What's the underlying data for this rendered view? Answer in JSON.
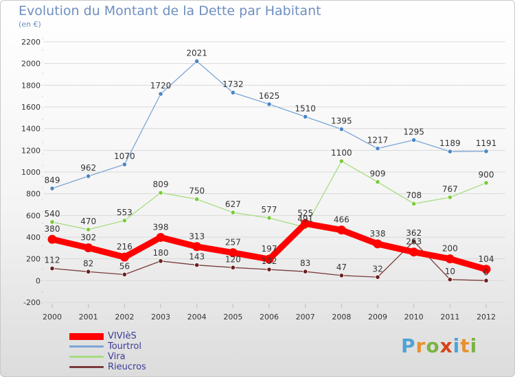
{
  "header": {
    "title": "Evolution du Montant de la Dette par Habitant",
    "subtitle": "(en €)"
  },
  "logo": {
    "text": "Proxiti"
  },
  "colors": {
    "title": "#6e8ec0",
    "grid": "#d9d9d9",
    "axis": "#b0b0b0"
  },
  "chart_data": {
    "type": "line",
    "x": [
      "2000",
      "2001",
      "2002",
      "2003",
      "2004",
      "2005",
      "2006",
      "2007",
      "2008",
      "2009",
      "2010",
      "2011",
      "2012"
    ],
    "ylim": [
      -200,
      2200
    ],
    "yticks": [
      "-200",
      "0",
      "200",
      "400",
      "600",
      "800",
      "1000",
      "1200",
      "1400",
      "1600",
      "1800",
      "2000",
      "2200"
    ],
    "grid": true,
    "legend_position": "bottom-left",
    "series": [
      {
        "name": "Tourtrol",
        "color": "#7ba5d6",
        "marker_color": "#4a86c5",
        "values": [
          849,
          962,
          1070,
          1720,
          2021,
          1732,
          1625,
          1510,
          1395,
          1217,
          1295,
          1189,
          1191
        ],
        "labels": [
          "849",
          "962",
          "1070",
          "1720",
          "2021",
          "1732",
          "1625",
          "1510",
          "1395",
          "1217",
          "1295",
          "1189",
          "1191"
        ]
      },
      {
        "name": "Vira",
        "color": "#a6dc80",
        "marker_color": "#7ccb3a",
        "values": [
          540,
          470,
          553,
          809,
          750,
          627,
          577,
          491,
          1100,
          909,
          708,
          767,
          900
        ],
        "labels": [
          "540",
          "470",
          "553",
          "809",
          "750",
          "627",
          "577",
          "491",
          "1100",
          "909",
          "708",
          "767",
          "900"
        ]
      },
      {
        "name": "Rieucros",
        "color": "#7a3a3a",
        "marker_color": "#6b1f1f",
        "values": [
          112,
          82,
          56,
          180,
          143,
          120,
          102,
          83,
          47,
          32,
          362,
          10,
          0
        ],
        "labels": [
          "112",
          "82",
          "56",
          "180",
          "143",
          "120",
          "102",
          "83",
          "47",
          "32",
          "362",
          "10",
          "0"
        ]
      },
      {
        "name": "VIVIèS",
        "color": "#ff0000",
        "marker_color": "#ff0000",
        "values": [
          380,
          302,
          216,
          398,
          313,
          257,
          197,
          525,
          466,
          338,
          263,
          200,
          104
        ],
        "labels": [
          "380",
          "302",
          "216",
          "398",
          "313",
          "257",
          "197",
          "525",
          "466",
          "338",
          "263",
          "200",
          "104"
        ]
      }
    ]
  },
  "legend": {
    "items": [
      {
        "label": "VIVIèS",
        "color": "#ff0000",
        "text_color": "#3a3a9a"
      },
      {
        "label": "Tourtrol",
        "color": "#7ba5d6",
        "text_color": "#3a3a9a"
      },
      {
        "label": "Vira",
        "color": "#a6dc80",
        "text_color": "#3a3a9a"
      },
      {
        "label": "Rieucros",
        "color": "#7a3a3a",
        "text_color": "#3a3a9a"
      }
    ]
  }
}
